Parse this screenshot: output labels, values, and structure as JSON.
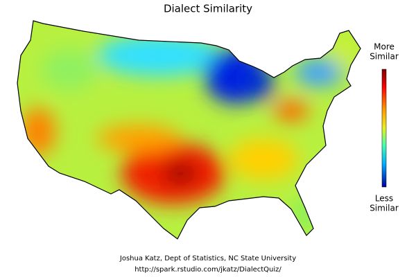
{
  "title": "Dialect Similarity",
  "legend": {
    "high_lines": [
      "More",
      "Similar"
    ],
    "low_lines": [
      "Less",
      "Similar"
    ]
  },
  "credits": [
    "Joshua Katz, Dept of Statistics, NC State University",
    "http://spark.rstudio.com/jkatz/DialectQuiz/"
  ]
}
